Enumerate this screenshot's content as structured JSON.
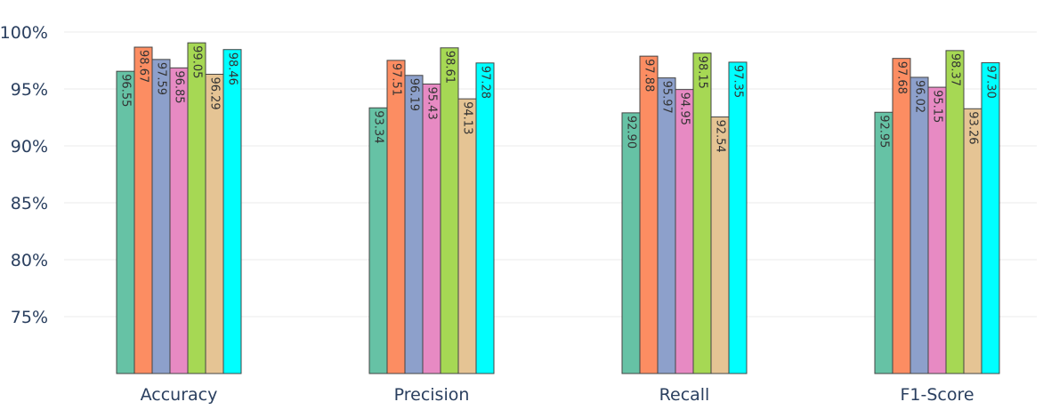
{
  "chart_data": {
    "type": "bar",
    "title": "",
    "xlabel": "",
    "ylabel": "",
    "categories": [
      "Accuracy",
      "Precision",
      "Recall",
      "F1-Score"
    ],
    "ylim": [
      70,
      100
    ],
    "yticks": [
      75,
      80,
      85,
      90,
      95,
      100
    ],
    "ytick_labels": [
      "75%",
      "80%",
      "85%",
      "90%",
      "95%",
      "100%"
    ],
    "grid": true,
    "legend": "none",
    "series": [
      {
        "color": "#66c2a5",
        "values": [
          96.55,
          93.34,
          92.9,
          92.95
        ],
        "labels": [
          "96.55",
          "93.34",
          "92.90",
          "92.95"
        ]
      },
      {
        "color": "#fc8d62",
        "values": [
          98.67,
          97.51,
          97.88,
          97.68
        ],
        "labels": [
          "98.67",
          "97.51",
          "97.88",
          "97.68"
        ]
      },
      {
        "color": "#8da0cb",
        "values": [
          97.59,
          96.19,
          95.97,
          96.02
        ],
        "labels": [
          "97.59",
          "96.19",
          "95.97",
          "96.02"
        ]
      },
      {
        "color": "#e78ac3",
        "values": [
          96.85,
          95.43,
          94.95,
          95.15
        ],
        "labels": [
          "96.85",
          "95.43",
          "94.95",
          "95.15"
        ]
      },
      {
        "color": "#a6d854",
        "values": [
          99.05,
          98.61,
          98.15,
          98.37
        ],
        "labels": [
          "99.05",
          "98.61",
          "98.15",
          "98.37"
        ]
      },
      {
        "color": "#e5c494",
        "values": [
          96.29,
          94.13,
          92.54,
          93.26
        ],
        "labels": [
          "96.29",
          "94.13",
          "92.54",
          "93.26"
        ]
      },
      {
        "color": "#00ffff",
        "values": [
          98.46,
          97.28,
          97.35,
          97.3
        ],
        "labels": [
          "98.46",
          "97.28",
          "97.35",
          "97.30"
        ]
      }
    ]
  }
}
